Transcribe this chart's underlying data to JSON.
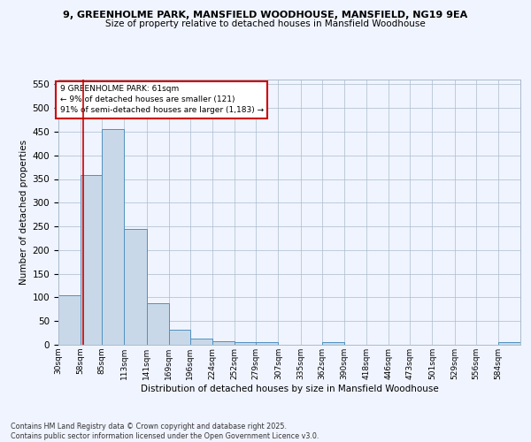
{
  "title": "9, GREENHOLME PARK, MANSFIELD WOODHOUSE, MANSFIELD, NG19 9EA",
  "subtitle": "Size of property relative to detached houses in Mansfield Woodhouse",
  "xlabel": "Distribution of detached houses by size in Mansfield Woodhouse",
  "ylabel": "Number of detached properties",
  "footer_line1": "Contains HM Land Registry data © Crown copyright and database right 2025.",
  "footer_line2": "Contains public sector information licensed under the Open Government Licence v3.0.",
  "annotation_title": "9 GREENHOLME PARK: 61sqm",
  "annotation_line1": "← 9% of detached houses are smaller (121)",
  "annotation_line2": "91% of semi-detached houses are larger (1,183) →",
  "property_size": 61,
  "bar_color": "#c8d8e8",
  "bar_edge_color": "#5090c0",
  "vline_color": "#cc0000",
  "annotation_box_color": "#cc0000",
  "background_color": "#f0f4ff",
  "grid_color": "#aabbcc",
  "categories": [
    "30sqm",
    "58sqm",
    "85sqm",
    "113sqm",
    "141sqm",
    "169sqm",
    "196sqm",
    "224sqm",
    "252sqm",
    "279sqm",
    "307sqm",
    "335sqm",
    "362sqm",
    "390sqm",
    "418sqm",
    "446sqm",
    "473sqm",
    "501sqm",
    "529sqm",
    "556sqm",
    "584sqm"
  ],
  "values": [
    105,
    358,
    455,
    245,
    88,
    31,
    13,
    8,
    5,
    5,
    0,
    0,
    5,
    0,
    0,
    0,
    0,
    0,
    0,
    0,
    5
  ],
  "bin_edges": [
    30,
    58,
    85,
    113,
    141,
    169,
    196,
    224,
    252,
    279,
    307,
    335,
    362,
    390,
    418,
    446,
    473,
    501,
    529,
    556,
    584,
    612
  ],
  "ylim": [
    0,
    560
  ],
  "yticks": [
    0,
    50,
    100,
    150,
    200,
    250,
    300,
    350,
    400,
    450,
    500,
    550
  ]
}
